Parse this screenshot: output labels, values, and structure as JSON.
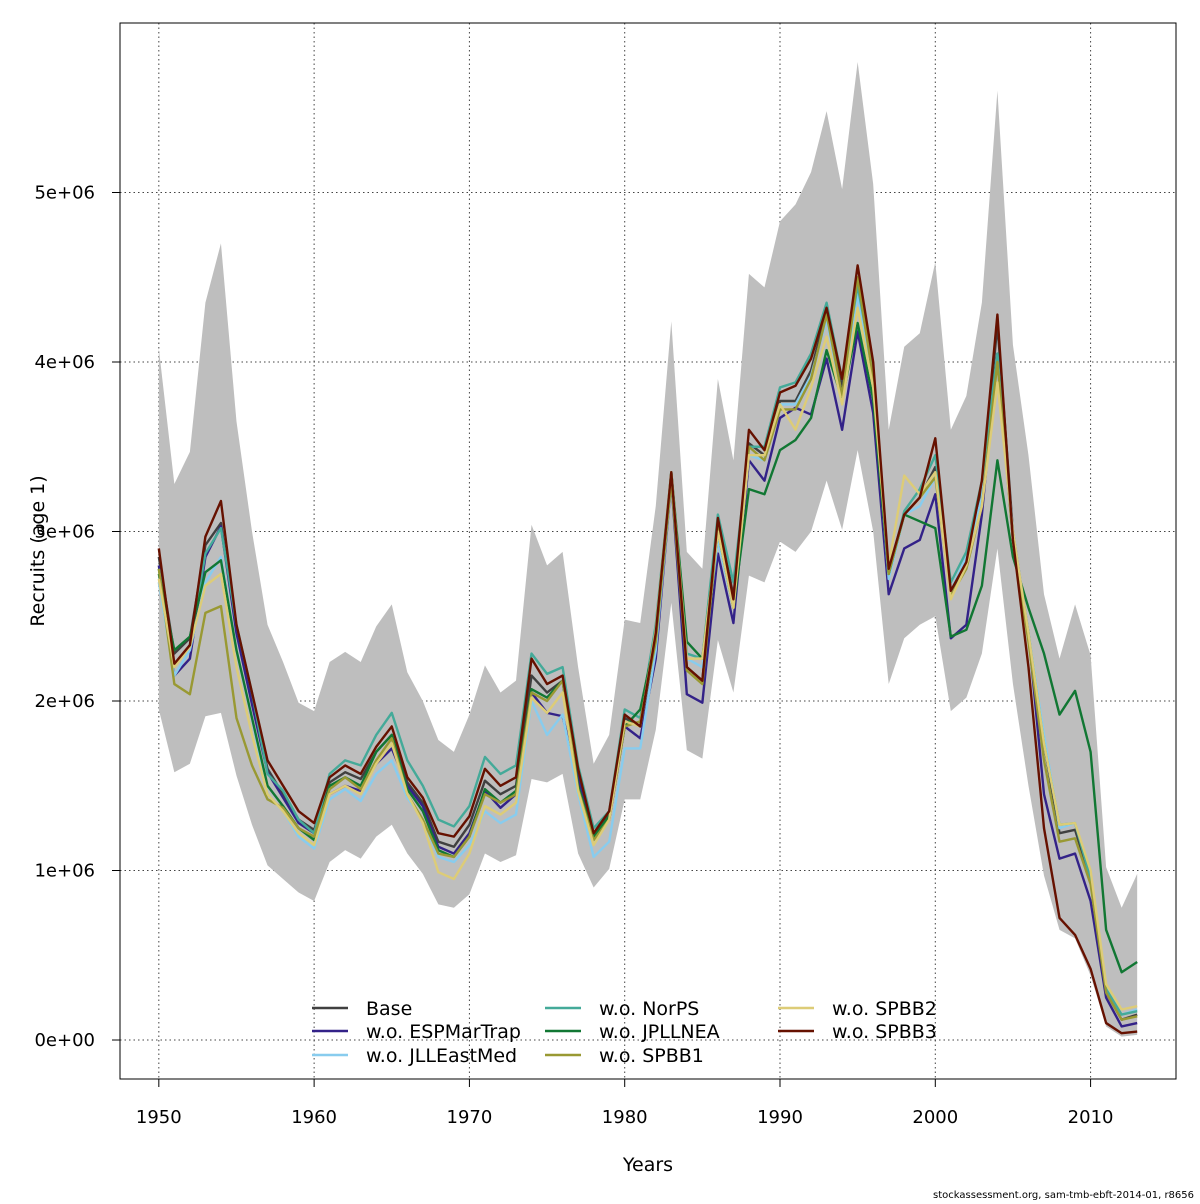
{
  "chart_data": {
    "type": "line",
    "title": "",
    "xlabel": "Years",
    "ylabel": "Recruits (age 1)",
    "xlim": [
      1947.5,
      2015.5
    ],
    "ylim": [
      -230000,
      6000000
    ],
    "x_ticks": [
      1950,
      1960,
      1970,
      1980,
      1990,
      2000,
      2010
    ],
    "x_tick_labels": [
      "1950",
      "1960",
      "1970",
      "1980",
      "1990",
      "2000",
      "2010"
    ],
    "y_ticks": [
      0,
      1000000,
      2000000,
      3000000,
      4000000,
      5000000
    ],
    "y_tick_labels": [
      "0e+00",
      "1e+06",
      "2e+06",
      "3e+06",
      "4e+06",
      "5e+06"
    ],
    "grid": true,
    "legend_placement": "bottom-center",
    "x_start": 1950,
    "unit_scale": 1000000,
    "band": {
      "color": "#bebebe",
      "upper": [
        4.08,
        3.28,
        3.47,
        4.35,
        4.7,
        3.65,
        3.0,
        2.45,
        2.23,
        1.99,
        1.94,
        2.23,
        2.29,
        2.23,
        2.44,
        2.57,
        2.17,
        2.0,
        1.77,
        1.7,
        1.92,
        2.21,
        2.05,
        2.12,
        3.04,
        2.8,
        2.88,
        2.2,
        1.63,
        1.8,
        2.48,
        2.46,
        3.15,
        4.24,
        2.88,
        2.78,
        3.9,
        3.42,
        4.52,
        4.44,
        4.83,
        4.93,
        5.12,
        5.48,
        5.02,
        5.77,
        5.05,
        3.6,
        4.09,
        4.17,
        4.59,
        3.6,
        3.8,
        4.35,
        5.6,
        4.1,
        3.45,
        2.63,
        2.25,
        2.57,
        2.27,
        1.02,
        0.78,
        0.98
      ],
      "lower": [
        1.95,
        1.58,
        1.63,
        1.91,
        1.93,
        1.56,
        1.27,
        1.03,
        0.95,
        0.87,
        0.82,
        1.05,
        1.12,
        1.07,
        1.2,
        1.27,
        1.1,
        0.98,
        0.8,
        0.78,
        0.86,
        1.1,
        1.05,
        1.09,
        1.54,
        1.52,
        1.57,
        1.1,
        0.9,
        1.01,
        1.42,
        1.42,
        1.83,
        2.58,
        1.71,
        1.66,
        2.36,
        2.05,
        2.74,
        2.7,
        2.94,
        2.88,
        3.0,
        3.3,
        3.01,
        3.48,
        3.0,
        2.1,
        2.37,
        2.45,
        2.5,
        1.94,
        2.02,
        2.28,
        2.9,
        2.1,
        1.5,
        0.97,
        0.65,
        0.6,
        0.38,
        0.08,
        0.02,
        0.03
      ]
    },
    "series": [
      {
        "name": "Base",
        "color": "#404040",
        "values": [
          2.85,
          2.28,
          2.37,
          2.92,
          3.05,
          2.42,
          2.0,
          1.6,
          1.45,
          1.3,
          1.24,
          1.52,
          1.58,
          1.54,
          1.7,
          1.8,
          1.52,
          1.4,
          1.17,
          1.14,
          1.27,
          1.53,
          1.45,
          1.5,
          2.15,
          2.05,
          2.12,
          1.55,
          1.2,
          1.33,
          1.9,
          1.85,
          2.35,
          3.35,
          2.2,
          2.12,
          3.08,
          2.62,
          3.52,
          3.45,
          3.77,
          3.77,
          3.95,
          4.3,
          3.85,
          4.45,
          3.9,
          2.75,
          3.1,
          3.2,
          3.38,
          2.65,
          2.8,
          3.25,
          4.22,
          3.0,
          2.4,
          1.75,
          1.22,
          1.24,
          0.95,
          0.28,
          0.12,
          0.15
        ]
      },
      {
        "name": "w.o. ESPMarTrap",
        "color": "#332288",
        "values": [
          2.8,
          2.15,
          2.25,
          2.85,
          3.03,
          2.4,
          1.98,
          1.58,
          1.43,
          1.28,
          1.22,
          1.45,
          1.5,
          1.47,
          1.63,
          1.72,
          1.5,
          1.38,
          1.14,
          1.1,
          1.22,
          1.47,
          1.37,
          1.45,
          2.05,
          1.93,
          1.91,
          1.55,
          1.19,
          1.3,
          1.85,
          1.78,
          2.25,
          3.3,
          2.04,
          1.99,
          2.87,
          2.46,
          3.42,
          3.3,
          3.67,
          3.73,
          3.69,
          4.02,
          3.6,
          4.18,
          3.7,
          2.63,
          2.9,
          2.95,
          3.22,
          2.37,
          2.45,
          3.1,
          4.05,
          2.95,
          2.4,
          1.45,
          1.07,
          1.1,
          0.82,
          0.25,
          0.08,
          0.1
        ]
      },
      {
        "name": "w.o. JLLEastMed",
        "color": "#88ccee",
        "values": [
          2.7,
          2.15,
          2.3,
          2.7,
          2.85,
          2.3,
          1.9,
          1.45,
          1.35,
          1.2,
          1.13,
          1.42,
          1.48,
          1.41,
          1.57,
          1.65,
          1.43,
          1.3,
          1.08,
          1.05,
          1.15,
          1.35,
          1.28,
          1.33,
          2.0,
          1.8,
          1.92,
          1.45,
          1.08,
          1.17,
          1.72,
          1.72,
          2.3,
          3.3,
          2.25,
          2.2,
          2.95,
          2.55,
          3.45,
          3.42,
          3.75,
          3.75,
          3.92,
          4.25,
          3.8,
          4.4,
          3.85,
          2.72,
          3.1,
          3.15,
          3.32,
          2.65,
          2.85,
          3.2,
          4.0,
          3.0,
          2.4,
          1.8,
          1.25,
          1.28,
          0.98,
          0.3,
          0.15,
          0.18
        ]
      },
      {
        "name": "w.o. NorPS",
        "color": "#44aa99",
        "values": [
          2.78,
          2.2,
          2.33,
          2.87,
          3.02,
          2.45,
          2.05,
          1.57,
          1.47,
          1.3,
          1.22,
          1.57,
          1.65,
          1.62,
          1.8,
          1.93,
          1.65,
          1.5,
          1.3,
          1.26,
          1.38,
          1.67,
          1.57,
          1.62,
          2.28,
          2.16,
          2.2,
          1.62,
          1.25,
          1.35,
          1.95,
          1.9,
          2.45,
          3.35,
          2.28,
          2.25,
          3.1,
          2.7,
          3.5,
          3.5,
          3.85,
          3.88,
          4.05,
          4.35,
          3.9,
          4.45,
          3.95,
          2.75,
          3.12,
          3.25,
          3.45,
          2.7,
          2.88,
          3.3,
          4.05,
          2.95,
          2.4,
          1.75,
          1.27,
          1.28,
          0.95,
          0.3,
          0.15,
          0.17
        ]
      },
      {
        "name": "w.o. JPLLNEA",
        "color": "#117733",
        "values": [
          2.75,
          2.3,
          2.38,
          2.76,
          2.83,
          2.3,
          1.9,
          1.5,
          1.38,
          1.25,
          1.18,
          1.5,
          1.55,
          1.5,
          1.7,
          1.8,
          1.48,
          1.35,
          1.12,
          1.08,
          1.2,
          1.48,
          1.4,
          1.47,
          2.07,
          2.02,
          2.12,
          1.5,
          1.2,
          1.32,
          1.85,
          1.95,
          2.38,
          3.35,
          2.35,
          2.25,
          3.0,
          2.55,
          3.25,
          3.22,
          3.48,
          3.54,
          3.67,
          4.07,
          3.78,
          4.23,
          3.78,
          2.75,
          3.1,
          3.06,
          3.02,
          2.38,
          2.42,
          2.68,
          3.42,
          2.85,
          2.55,
          2.28,
          1.92,
          2.06,
          1.7,
          0.65,
          0.4,
          0.46
        ]
      },
      {
        "name": "w.o. SPBB1",
        "color": "#999933",
        "values": [
          2.78,
          2.1,
          2.04,
          2.52,
          2.56,
          1.9,
          1.62,
          1.42,
          1.37,
          1.25,
          1.2,
          1.48,
          1.55,
          1.48,
          1.65,
          1.78,
          1.45,
          1.3,
          1.1,
          1.08,
          1.2,
          1.45,
          1.4,
          1.45,
          2.05,
          2.0,
          2.12,
          1.48,
          1.18,
          1.3,
          1.85,
          1.88,
          2.35,
          3.3,
          2.18,
          2.1,
          3.02,
          2.55,
          3.5,
          3.42,
          3.72,
          3.72,
          3.9,
          4.28,
          3.8,
          4.5,
          3.9,
          2.75,
          3.1,
          3.2,
          3.32,
          2.62,
          2.78,
          3.15,
          4.0,
          2.95,
          2.35,
          1.65,
          1.17,
          1.19,
          0.92,
          0.28,
          0.12,
          0.14
        ]
      },
      {
        "name": "w.o. SPBB2",
        "color": "#ddcc77",
        "values": [
          2.72,
          2.2,
          2.32,
          2.68,
          2.75,
          2.2,
          1.8,
          1.45,
          1.35,
          1.22,
          1.15,
          1.45,
          1.5,
          1.45,
          1.63,
          1.75,
          1.45,
          1.28,
          0.99,
          0.95,
          1.1,
          1.38,
          1.33,
          1.4,
          2.02,
          1.93,
          2.05,
          1.47,
          1.15,
          1.3,
          1.88,
          1.85,
          2.42,
          3.35,
          2.25,
          2.25,
          3.0,
          2.55,
          3.45,
          3.45,
          3.75,
          3.6,
          3.85,
          4.15,
          3.75,
          4.32,
          3.85,
          2.8,
          3.33,
          3.22,
          3.35,
          2.6,
          2.8,
          3.15,
          3.88,
          3.0,
          2.4,
          1.75,
          1.27,
          1.28,
          1.0,
          0.33,
          0.18,
          0.2
        ]
      },
      {
        "name": "w.o. SPBB3",
        "color": "#661100",
        "values": [
          2.9,
          2.22,
          2.33,
          2.97,
          3.18,
          2.45,
          2.05,
          1.65,
          1.5,
          1.35,
          1.28,
          1.55,
          1.62,
          1.57,
          1.73,
          1.85,
          1.55,
          1.43,
          1.22,
          1.2,
          1.32,
          1.6,
          1.5,
          1.55,
          2.25,
          2.1,
          2.15,
          1.6,
          1.22,
          1.35,
          1.92,
          1.85,
          2.4,
          3.35,
          2.2,
          2.12,
          3.08,
          2.6,
          3.6,
          3.48,
          3.82,
          3.86,
          4.02,
          4.32,
          3.9,
          4.57,
          4.0,
          2.78,
          3.1,
          3.2,
          3.55,
          2.65,
          2.82,
          3.3,
          4.28,
          2.95,
          2.2,
          1.25,
          0.72,
          0.62,
          0.42,
          0.1,
          0.04,
          0.05
        ]
      }
    ]
  },
  "footer": "stockassessment.org, sam-tmb-ebft-2014-01, r8656"
}
